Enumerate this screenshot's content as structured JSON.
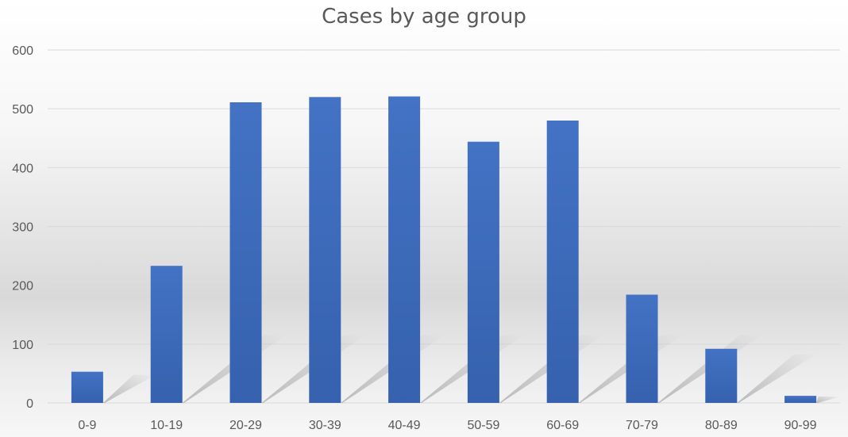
{
  "chart_data": {
    "type": "bar",
    "title": "Cases by age group",
    "xlabel": "",
    "ylabel": "",
    "categories": [
      "0-9",
      "10-19",
      "20-29",
      "30-39",
      "40-49",
      "50-59",
      "60-69",
      "70-79",
      "80-89",
      "90-99"
    ],
    "values": [
      53,
      233,
      511,
      520,
      521,
      444,
      480,
      184,
      92,
      12
    ],
    "ylim": [
      0,
      600
    ],
    "yticks": [
      "0",
      "100",
      "200",
      "300",
      "400",
      "500",
      "600"
    ],
    "grid": true,
    "legend": "none",
    "colors": {
      "bar_top": "#4472c4",
      "bar_bottom": "#3561ae",
      "grid": "#d9d9d9",
      "text": "#595959"
    }
  }
}
